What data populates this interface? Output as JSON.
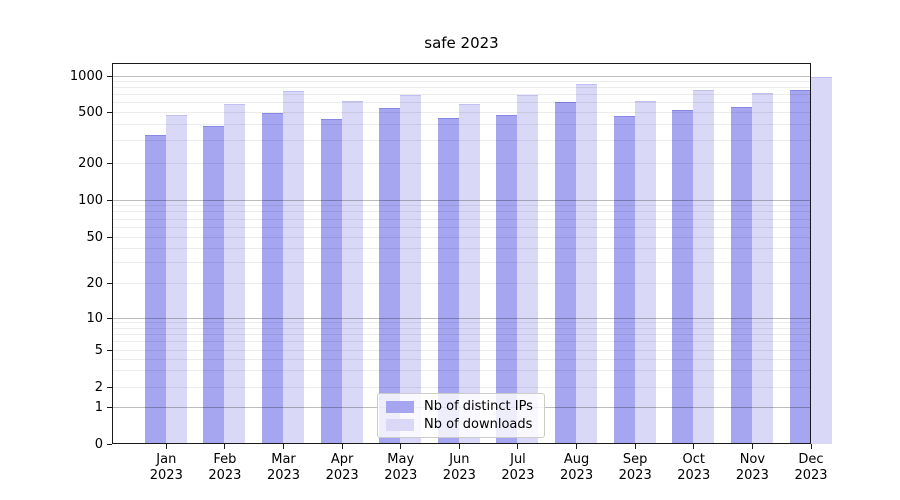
{
  "chart_data": {
    "type": "bar",
    "title": "safe 2023",
    "categories": [
      "Jan\n2023",
      "Feb\n2023",
      "Mar\n2023",
      "Apr\n2023",
      "May\n2023",
      "Jun\n2023",
      "Jul\n2023",
      "Aug\n2023",
      "Sep\n2023",
      "Oct\n2023",
      "Nov\n2023",
      "Dec\n2023"
    ],
    "series": [
      {
        "name": "Nb of distinct IPs",
        "color": "#a5a5f0",
        "values": [
          330,
          390,
          490,
          440,
          535,
          450,
          475,
          605,
          465,
          520,
          550,
          760
        ]
      },
      {
        "name": "Nb of downloads",
        "color": "#d9d9f7",
        "values": [
          470,
          580,
          755,
          620,
          690,
          580,
          690,
          865,
          620,
          770,
          720,
          980
        ]
      }
    ],
    "yticks": [
      0,
      1,
      2,
      5,
      10,
      20,
      50,
      100,
      200,
      500,
      1000
    ],
    "yscale": "symlog",
    "ylim": [
      0,
      1280
    ],
    "xlabel": "",
    "ylabel": "",
    "grid": true,
    "legend_position": "lower center",
    "colors": {
      "background": "#ffffff",
      "spine": "#1a1a1a",
      "major_grid": "#bdbdbd",
      "minor_grid": "#ececec",
      "text": "#000000"
    }
  }
}
